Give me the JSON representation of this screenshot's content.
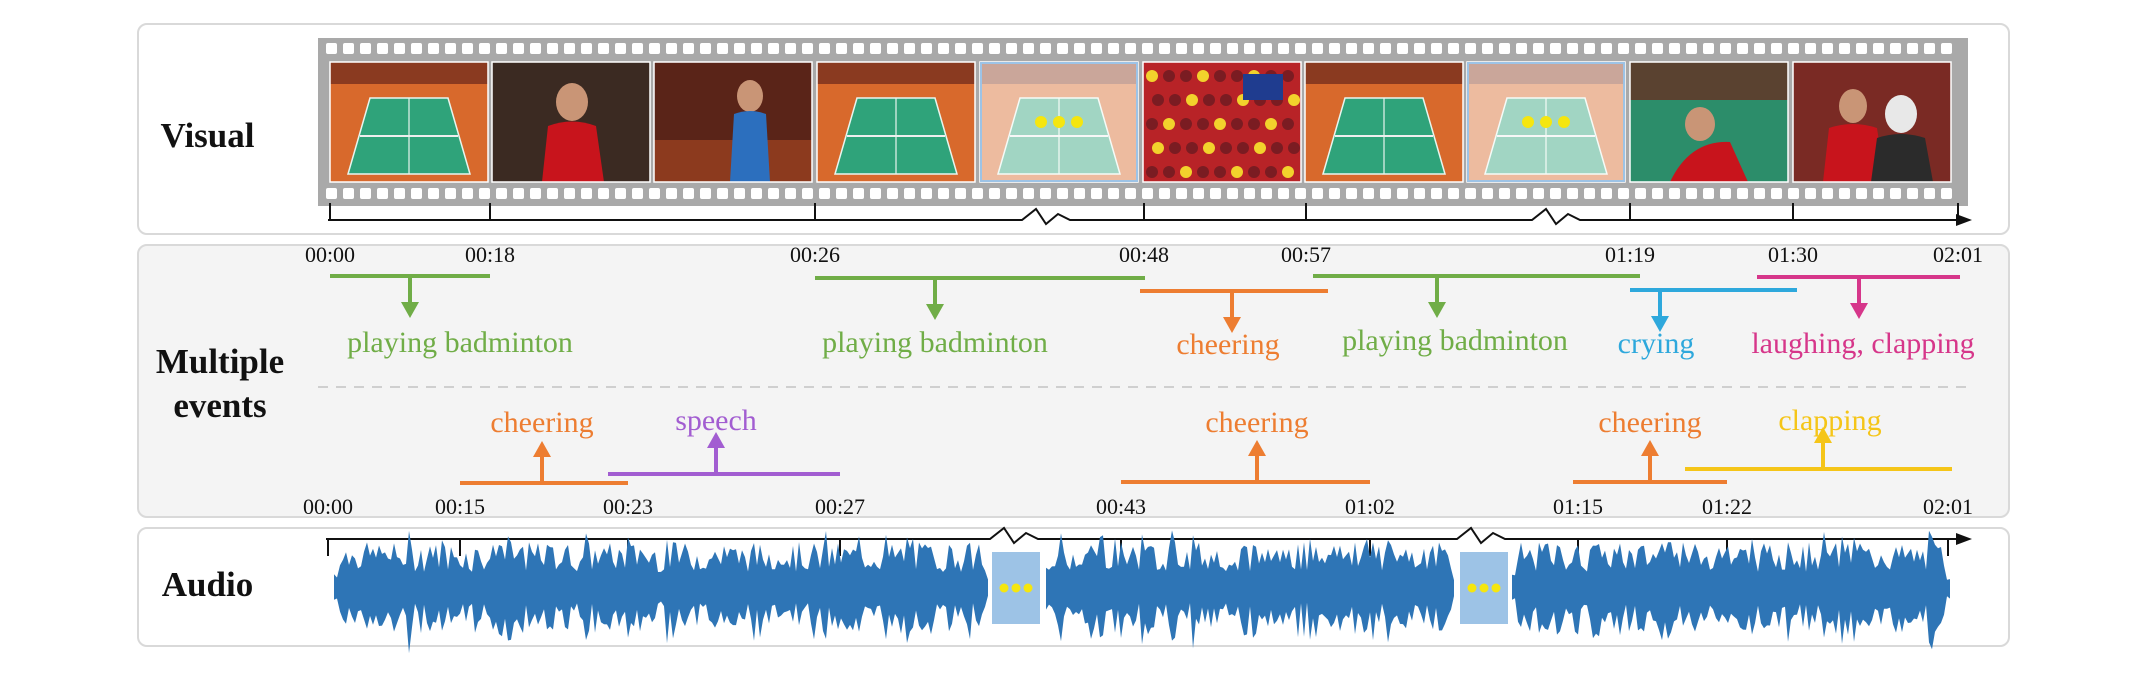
{
  "labels": {
    "visual": "Visual",
    "events": "Multiple\nevents",
    "audio": "Audio"
  },
  "colors": {
    "green": "#70ad47",
    "orange": "#ed7d31",
    "blue": "#2ea8dc",
    "pink": "#d6368a",
    "purple": "#a25dd1",
    "yellow": "#f5c518",
    "wave": "#2e75b6",
    "wave_gap": "#9dc3e6"
  },
  "visual_timeline": {
    "ticks": [
      "00:00",
      "00:18",
      "00:26",
      "00:48",
      "00:57",
      "01:19",
      "01:30",
      "02:01"
    ],
    "frames": [
      {
        "scene": "court-wide",
        "skipped": false
      },
      {
        "scene": "player-red",
        "skipped": false
      },
      {
        "scene": "player-blue",
        "skipped": false
      },
      {
        "scene": "court-wide",
        "skipped": false
      },
      {
        "scene": "court-wide",
        "skipped": true
      },
      {
        "scene": "crowd-flags",
        "skipped": false
      },
      {
        "scene": "court-wide",
        "skipped": false
      },
      {
        "scene": "court-wide",
        "skipped": true
      },
      {
        "scene": "player-crying",
        "skipped": false
      },
      {
        "scene": "interview",
        "skipped": false
      }
    ]
  },
  "visual_events": [
    {
      "label": "playing badminton",
      "color": "green",
      "start": "00:00",
      "end": "00:18"
    },
    {
      "label": "playing badminton",
      "color": "green",
      "start": "00:26",
      "end": "00:48"
    },
    {
      "label": "cheering",
      "color": "orange",
      "start": "00:48",
      "end": "00:57"
    },
    {
      "label": "playing badminton",
      "color": "green",
      "start": "00:57",
      "end": "01:19"
    },
    {
      "label": "crying",
      "color": "blue",
      "start": "01:19",
      "end": "01:30"
    },
    {
      "label": "laughing, clapping",
      "color": "pink",
      "start": "01:30",
      "end": "02:01"
    }
  ],
  "audio_timeline": {
    "ticks": [
      "00:00",
      "00:15",
      "00:23",
      "00:27",
      "00:43",
      "01:02",
      "01:15",
      "01:22",
      "02:01"
    ]
  },
  "audio_events": [
    {
      "label": "cheering",
      "color": "orange",
      "start": "00:15",
      "end": "00:23"
    },
    {
      "label": "speech",
      "color": "purple",
      "start": "00:23",
      "end": "00:27"
    },
    {
      "label": "cheering",
      "color": "orange",
      "start": "00:43",
      "end": "01:02"
    },
    {
      "label": "cheering",
      "color": "orange",
      "start": "01:15",
      "end": "01:22"
    },
    {
      "label": "clapping",
      "color": "yellow",
      "start": "01:22",
      "end": "02:01"
    }
  ]
}
